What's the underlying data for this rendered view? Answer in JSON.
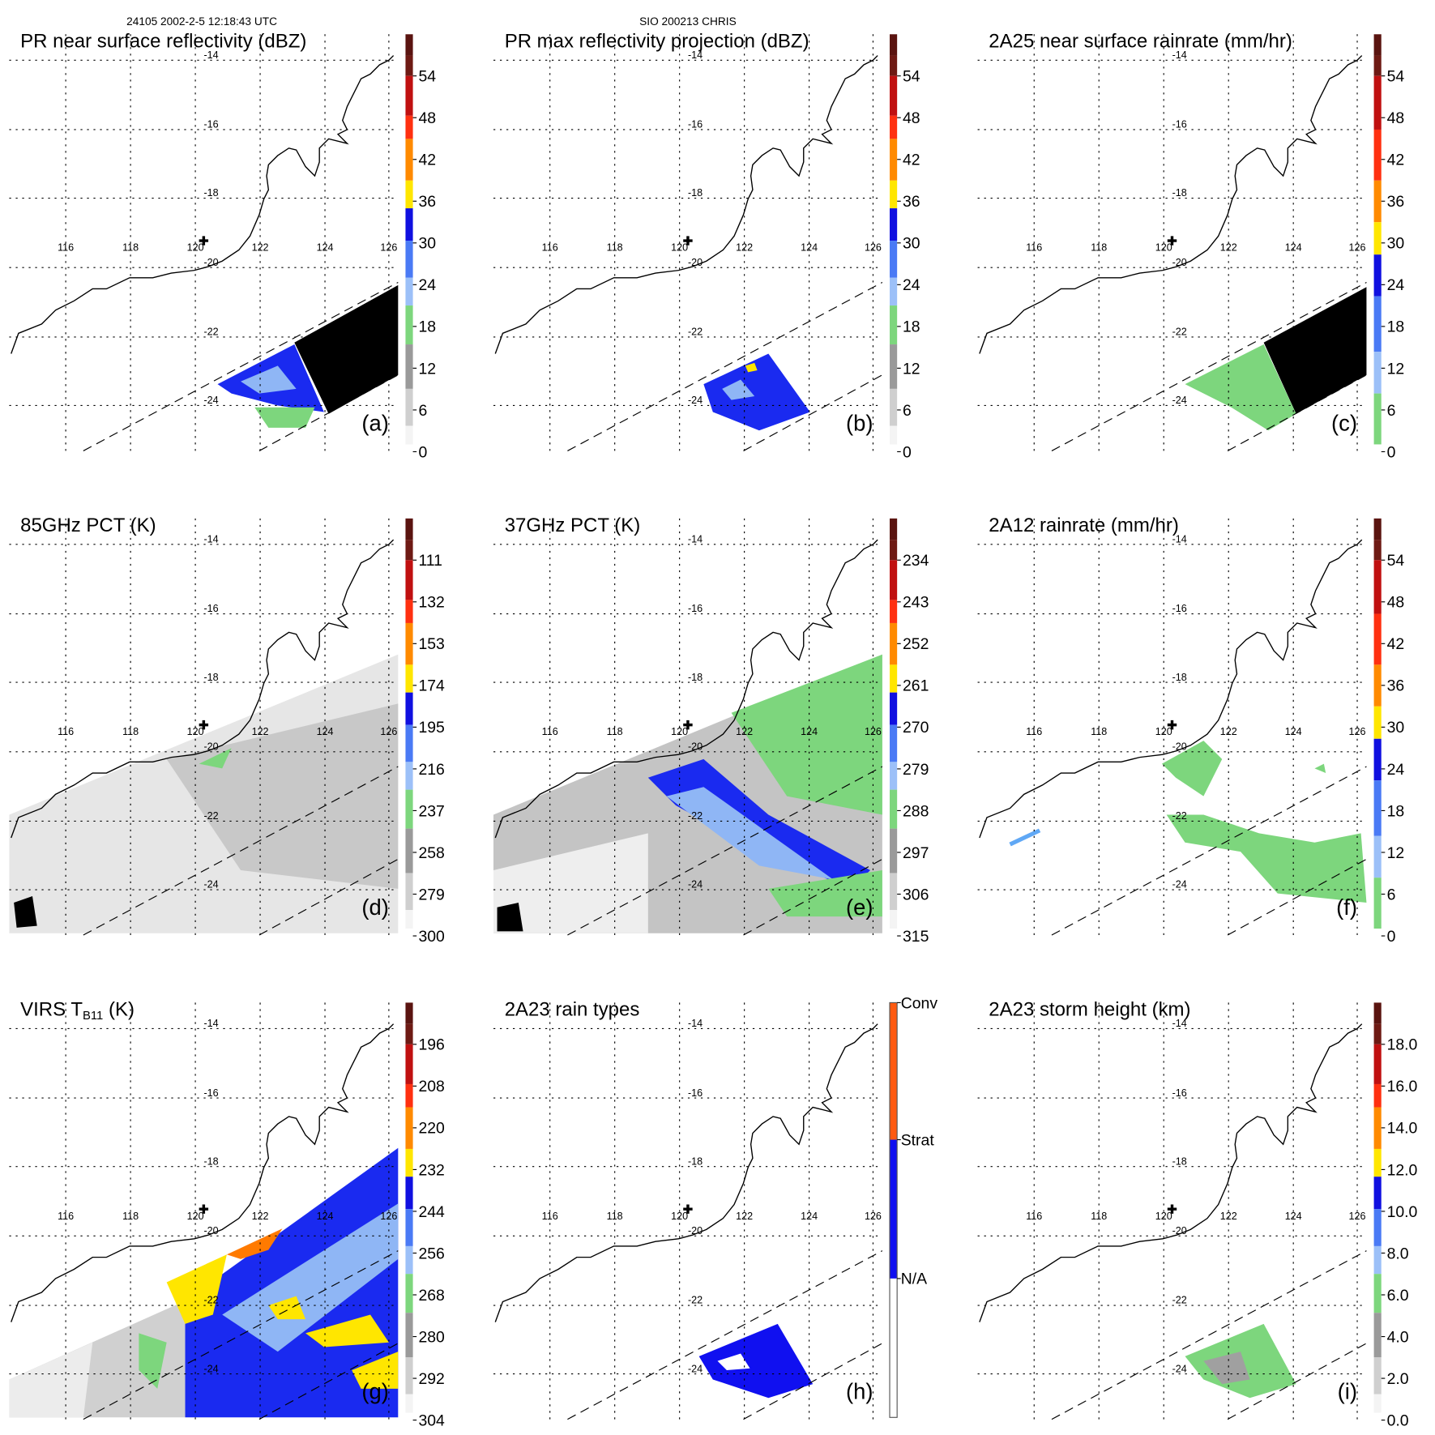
{
  "header": {
    "left": "24105 2002-2-5 12:18:43 UTC",
    "center": "SIO 200213 CHRIS"
  },
  "grid": {
    "lat_labels": [
      "-14",
      "-16",
      "-18",
      "-20",
      "-22",
      "-24"
    ],
    "lon_labels": [
      "116",
      "118",
      "120",
      "122",
      "124",
      "126"
    ]
  },
  "panels": [
    {
      "title": "PR near surface reflectivity (dBZ)",
      "letter": "(a)",
      "palette": "dbz",
      "cb_labels": [
        "54",
        "48",
        "42",
        "36",
        "30",
        "24",
        "18",
        "12",
        "6",
        "0"
      ]
    },
    {
      "title": "PR max reflectivity projection (dBZ)",
      "letter": "(b)",
      "palette": "dbz",
      "cb_labels": [
        "54",
        "48",
        "42",
        "36",
        "30",
        "24",
        "18",
        "12",
        "6",
        "0"
      ]
    },
    {
      "title": "2A25 near surface rainrate (mm/hr)",
      "letter": "(c)",
      "palette": "rain",
      "cb_labels": [
        "54",
        "48",
        "42",
        "36",
        "30",
        "24",
        "18",
        "12",
        "6",
        "0"
      ]
    },
    {
      "title": "85GHz PCT (K)",
      "letter": "(d)",
      "palette": "dbz",
      "cb_labels": [
        "111",
        "132",
        "153",
        "174",
        "195",
        "216",
        "237",
        "258",
        "279",
        "300"
      ]
    },
    {
      "title": "37GHz PCT (K)",
      "letter": "(e)",
      "palette": "dbz",
      "cb_labels": [
        "234",
        "243",
        "252",
        "261",
        "270",
        "279",
        "288",
        "297",
        "306",
        "315"
      ]
    },
    {
      "title": "2A12 rainrate (mm/hr)",
      "letter": "(f)",
      "palette": "rain",
      "cb_labels": [
        "54",
        "48",
        "42",
        "36",
        "30",
        "24",
        "18",
        "12",
        "6",
        "0"
      ]
    },
    {
      "title": "VIRS T",
      "title_sub": "B11",
      "title_rest": " (K)",
      "letter": "(g)",
      "palette": "dbz",
      "cb_labels": [
        "196",
        "208",
        "220",
        "232",
        "244",
        "256",
        "268",
        "280",
        "292",
        "304"
      ]
    },
    {
      "title": "2A23 rain types",
      "letter": "(h)",
      "palette": "types",
      "cb_labels": [
        "Conv",
        "Strat",
        "N/A"
      ]
    },
    {
      "title": "2A23 storm height (km)",
      "letter": "(i)",
      "palette": "dbz",
      "cb_labels": [
        "18.0",
        "16.0",
        "14.0",
        "12.0",
        "10.0",
        "8.0",
        "6.0",
        "4.0",
        "2.0",
        "0.0"
      ]
    }
  ],
  "colors": {
    "black": "#000000",
    "blue": "#1a2af0",
    "light_blue": "#8fb6f5",
    "green": "#7dd67d",
    "yellow": "#ffe600",
    "orange": "#ff7a00",
    "gray": "#a0a0a0"
  }
}
